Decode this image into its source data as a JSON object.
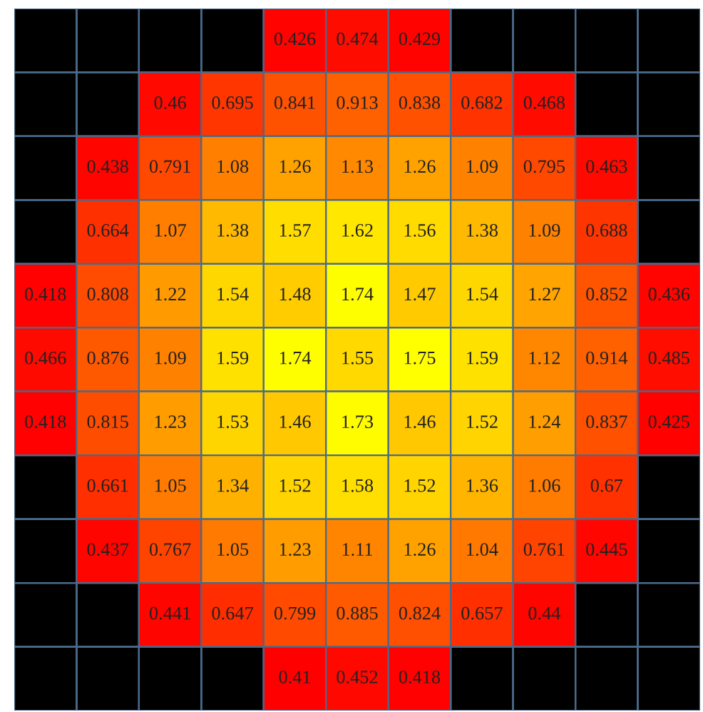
{
  "chart_data": {
    "type": "heatmap",
    "categories": [
      null,
      null,
      null,
      null,
      null,
      null,
      null,
      null,
      null,
      null,
      null
    ],
    "y_categories": [
      null,
      null,
      null,
      null,
      null,
      null,
      null,
      null,
      null,
      null,
      null
    ],
    "cells": [
      [
        null,
        null,
        null,
        null,
        0.426,
        0.474,
        0.429,
        null,
        null,
        null,
        null
      ],
      [
        null,
        null,
        0.46,
        0.695,
        0.841,
        0.913,
        0.838,
        0.682,
        0.468,
        null,
        null
      ],
      [
        null,
        0.438,
        0.791,
        1.08,
        1.26,
        1.13,
        1.26,
        1.09,
        0.795,
        0.463,
        null
      ],
      [
        null,
        0.664,
        1.07,
        1.38,
        1.57,
        1.62,
        1.56,
        1.38,
        1.09,
        0.688,
        null
      ],
      [
        0.418,
        0.808,
        1.22,
        1.54,
        1.48,
        1.74,
        1.47,
        1.54,
        1.27,
        0.852,
        0.436
      ],
      [
        0.466,
        0.876,
        1.09,
        1.59,
        1.74,
        1.55,
        1.75,
        1.59,
        1.12,
        0.914,
        0.485
      ],
      [
        0.418,
        0.815,
        1.23,
        1.53,
        1.46,
        1.73,
        1.46,
        1.52,
        1.24,
        0.837,
        0.425
      ],
      [
        null,
        0.661,
        1.05,
        1.34,
        1.52,
        1.58,
        1.52,
        1.36,
        1.06,
        0.67,
        null
      ],
      [
        null,
        0.437,
        0.767,
        1.05,
        1.23,
        1.11,
        1.26,
        1.04,
        0.761,
        0.445,
        null
      ],
      [
        null,
        null,
        0.441,
        0.647,
        0.799,
        0.885,
        0.824,
        0.657,
        0.44,
        null,
        null
      ],
      [
        null,
        null,
        null,
        null,
        0.41,
        0.452,
        0.418,
        null,
        null,
        null,
        null
      ]
    ],
    "colors": [
      "#000000",
      "#ff0000",
      "#ffff00"
    ],
    "data_labels": true
  }
}
